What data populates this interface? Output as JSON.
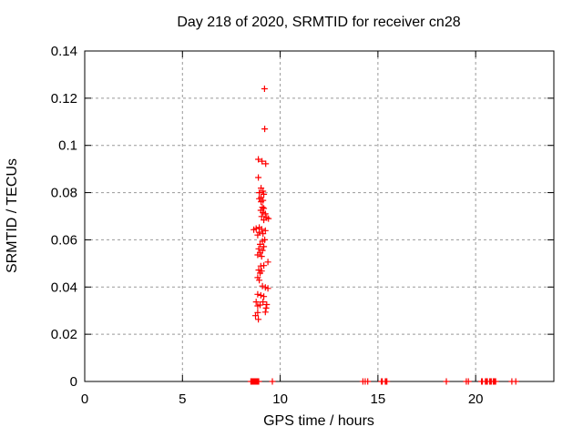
{
  "chart_data": {
    "type": "scatter",
    "title": "Day 218 of 2020, SRMTID for receiver cn28",
    "xlabel": "GPS time / hours",
    "ylabel": "SRMTID / TECUs",
    "xlim": [
      0,
      24
    ],
    "ylim": [
      0,
      0.14
    ],
    "xticks": [
      0,
      5,
      10,
      15,
      20
    ],
    "xtick_labels": [
      "0",
      "5",
      "10",
      "15",
      "20"
    ],
    "yticks": [
      0,
      0.02,
      0.04,
      0.06,
      0.08,
      0.1,
      0.12,
      0.14
    ],
    "ytick_labels": [
      "0",
      "0.02",
      "0.04",
      "0.06",
      "0.08",
      "0.1",
      "0.12",
      "0.14"
    ],
    "grid": true,
    "legend": "none",
    "marker": "plus",
    "series": [
      {
        "name": "SRMTID",
        "color": "#ff0000",
        "points": [
          [
            9.2,
            0.124
          ],
          [
            9.21,
            0.107
          ],
          [
            8.88,
            0.0941
          ],
          [
            9.07,
            0.0933
          ],
          [
            9.26,
            0.0922
          ],
          [
            8.88,
            0.0864
          ],
          [
            9.02,
            0.0819
          ],
          [
            9.12,
            0.0806
          ],
          [
            8.93,
            0.08
          ],
          [
            9.16,
            0.0793
          ],
          [
            9.02,
            0.078
          ],
          [
            8.93,
            0.0774
          ],
          [
            9.12,
            0.0767
          ],
          [
            9.02,
            0.0761
          ],
          [
            9.09,
            0.0738
          ],
          [
            9.16,
            0.0733
          ],
          [
            9.01,
            0.0725
          ],
          [
            9.12,
            0.0716
          ],
          [
            9.24,
            0.071
          ],
          [
            9.05,
            0.0699
          ],
          [
            9.31,
            0.0694
          ],
          [
            9.4,
            0.069
          ],
          [
            9.16,
            0.0684
          ],
          [
            8.93,
            0.0652
          ],
          [
            8.77,
            0.0648
          ],
          [
            8.65,
            0.0643
          ],
          [
            9.05,
            0.0645
          ],
          [
            9.24,
            0.0639
          ],
          [
            8.93,
            0.0632
          ],
          [
            9.12,
            0.0626
          ],
          [
            8.85,
            0.062
          ],
          [
            9.21,
            0.06
          ],
          [
            9.09,
            0.0594
          ],
          [
            8.97,
            0.0581
          ],
          [
            9.16,
            0.0571
          ],
          [
            8.9,
            0.0562
          ],
          [
            9.09,
            0.0555
          ],
          [
            8.97,
            0.0545
          ],
          [
            8.85,
            0.0536
          ],
          [
            9.05,
            0.053
          ],
          [
            9.37,
            0.0506
          ],
          [
            9.16,
            0.0491
          ],
          [
            9.01,
            0.0489
          ],
          [
            8.9,
            0.0472
          ],
          [
            9.05,
            0.0468
          ],
          [
            8.97,
            0.0459
          ],
          [
            8.85,
            0.044
          ],
          [
            8.93,
            0.0429
          ],
          [
            9.09,
            0.0404
          ],
          [
            9.24,
            0.0398
          ],
          [
            9.37,
            0.0394
          ],
          [
            8.85,
            0.0369
          ],
          [
            9.01,
            0.0365
          ],
          [
            9.16,
            0.036
          ],
          [
            8.77,
            0.0337
          ],
          [
            9.12,
            0.0337
          ],
          [
            9.31,
            0.0326
          ],
          [
            8.97,
            0.0324
          ],
          [
            8.85,
            0.032
          ],
          [
            9.28,
            0.0311
          ],
          [
            9.24,
            0.0294
          ],
          [
            8.85,
            0.0292
          ],
          [
            8.74,
            0.0279
          ],
          [
            8.88,
            0.0263
          ],
          [
            8.5,
            0
          ],
          [
            8.53,
            0
          ],
          [
            8.55,
            0
          ],
          [
            8.58,
            0
          ],
          [
            8.6,
            0
          ],
          [
            8.63,
            0
          ],
          [
            8.65,
            0
          ],
          [
            8.68,
            0
          ],
          [
            8.7,
            0
          ],
          [
            8.73,
            0
          ],
          [
            8.75,
            0
          ],
          [
            8.78,
            0
          ],
          [
            8.8,
            0
          ],
          [
            8.83,
            0
          ],
          [
            8.85,
            0
          ],
          [
            8.88,
            0
          ],
          [
            8.9,
            0
          ],
          [
            9.6,
            0
          ],
          [
            14.23,
            0
          ],
          [
            14.35,
            0
          ],
          [
            14.48,
            0
          ],
          [
            15.18,
            0
          ],
          [
            15.22,
            0
          ],
          [
            15.38,
            0
          ],
          [
            15.42,
            0
          ],
          [
            15.46,
            0
          ],
          [
            18.5,
            0
          ],
          [
            19.52,
            0
          ],
          [
            19.63,
            0
          ],
          [
            20.3,
            0
          ],
          [
            20.34,
            0
          ],
          [
            20.5,
            0
          ],
          [
            20.55,
            0
          ],
          [
            20.6,
            0
          ],
          [
            20.72,
            0
          ],
          [
            20.76,
            0
          ],
          [
            20.8,
            0
          ],
          [
            20.9,
            0
          ],
          [
            20.94,
            0
          ],
          [
            20.98,
            0
          ],
          [
            21.02,
            0
          ],
          [
            21.85,
            0
          ],
          [
            22.05,
            0
          ]
        ]
      }
    ]
  },
  "colors": {
    "marker": "#ff0000",
    "axis": "#000000",
    "grid": "#999999",
    "background": "#ffffff",
    "text": "#000000"
  }
}
